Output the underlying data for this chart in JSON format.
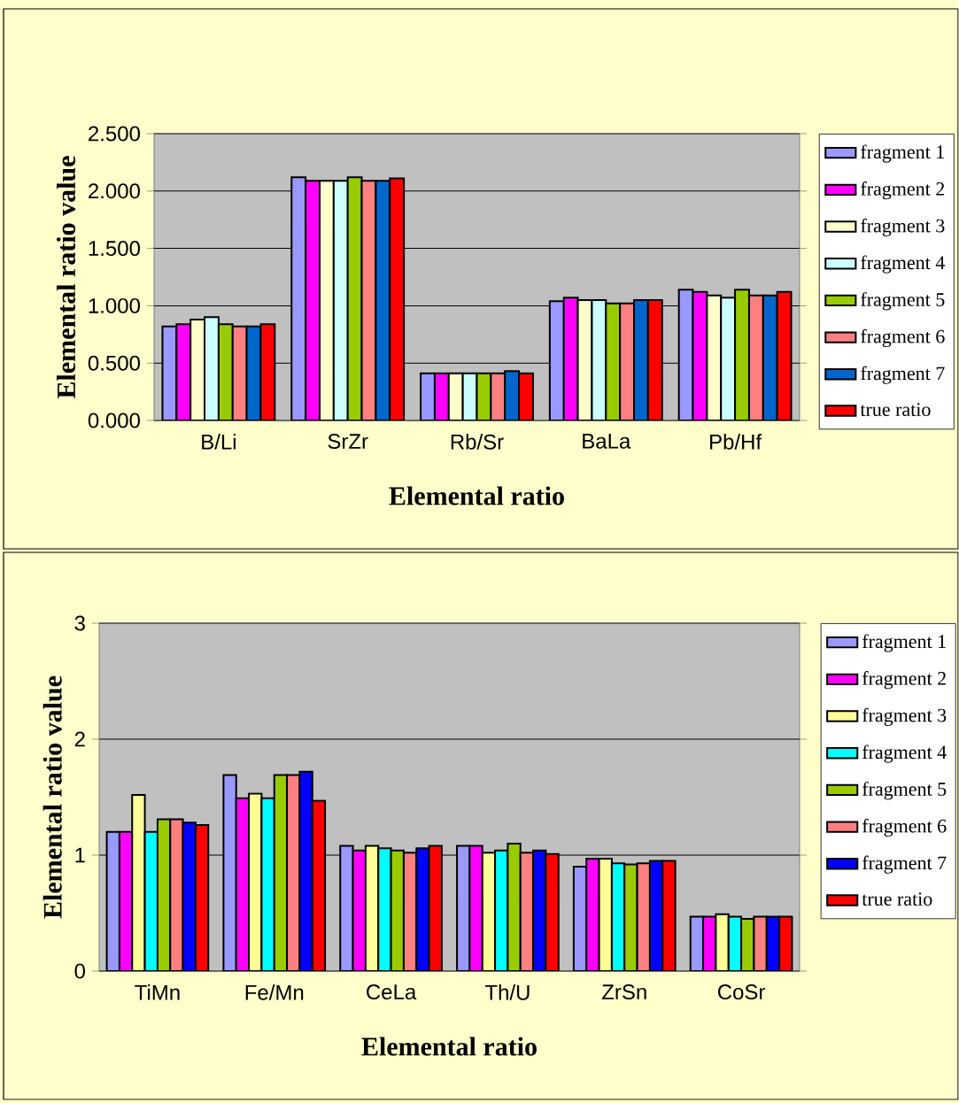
{
  "chart_data": [
    {
      "type": "bar",
      "xlabel": "Elemental ratio",
      "ylabel": "Elemental ratio value",
      "categories": [
        "B/Li",
        "SrZr",
        "Rb/Sr",
        "BaLa",
        "Pb/Hf"
      ],
      "ylim": [
        0,
        2.5
      ],
      "yticks": [
        {
          "value": 0,
          "label": "0.000"
        },
        {
          "value": 0.5,
          "label": "0.500"
        },
        {
          "value": 1,
          "label": "1.000"
        },
        {
          "value": 1.5,
          "label": "1.500"
        },
        {
          "value": 2,
          "label": "2.000"
        },
        {
          "value": 2.5,
          "label": "2.500"
        }
      ],
      "grid": "y",
      "legend": "right",
      "series": [
        {
          "name": "fragment 1",
          "color": "#9999ff",
          "values": [
            0.82,
            2.12,
            0.41,
            1.04,
            1.14
          ]
        },
        {
          "name": "fragment 2",
          "color": "#ff00ff",
          "values": [
            0.84,
            2.09,
            0.41,
            1.07,
            1.12
          ]
        },
        {
          "name": "fragment 3",
          "color": "#ffffcc",
          "values": [
            0.88,
            2.09,
            0.41,
            1.05,
            1.09
          ]
        },
        {
          "name": "fragment 4",
          "color": "#ccffff",
          "values": [
            0.9,
            2.09,
            0.41,
            1.05,
            1.07
          ]
        },
        {
          "name": "fragment 5",
          "color": "#99cc00",
          "values": [
            0.84,
            2.12,
            0.41,
            1.02,
            1.14
          ]
        },
        {
          "name": "fragment 6",
          "color": "#ff8080",
          "values": [
            0.82,
            2.09,
            0.41,
            1.02,
            1.09
          ]
        },
        {
          "name": "fragment 7",
          "color": "#0066cc",
          "values": [
            0.82,
            2.09,
            0.43,
            1.05,
            1.09
          ]
        },
        {
          "name": "true ratio",
          "color": "#ff0000",
          "values": [
            0.84,
            2.11,
            0.41,
            1.05,
            1.12
          ]
        }
      ]
    },
    {
      "type": "bar",
      "xlabel": "Elemental ratio",
      "ylabel": "Elemental ratio value",
      "categories": [
        "TiMn",
        "Fe/Mn",
        "CeLa",
        "Th/U",
        "ZrSn",
        "CoSr"
      ],
      "ylim": [
        0,
        3
      ],
      "yticks": [
        0,
        1,
        2,
        3
      ],
      "grid": "y",
      "legend": "right",
      "series": [
        {
          "name": "fragment 1",
          "color": "#9999ff",
          "values": [
            1.2,
            1.69,
            1.08,
            1.08,
            0.9,
            0.47
          ]
        },
        {
          "name": "fragment 2",
          "color": "#ff00ff",
          "values": [
            1.2,
            1.49,
            1.04,
            1.08,
            0.97,
            0.47
          ]
        },
        {
          "name": "fragment 3",
          "color": "#ffff99",
          "values": [
            1.52,
            1.53,
            1.08,
            1.02,
            0.97,
            0.49
          ]
        },
        {
          "name": "fragment 4",
          "color": "#00ffff",
          "values": [
            1.2,
            1.49,
            1.06,
            1.04,
            0.93,
            0.47
          ]
        },
        {
          "name": "fragment 5",
          "color": "#99cc00",
          "values": [
            1.31,
            1.69,
            1.04,
            1.1,
            0.92,
            0.45
          ]
        },
        {
          "name": "fragment 6",
          "color": "#ff8080",
          "values": [
            1.31,
            1.69,
            1.02,
            1.02,
            0.93,
            0.47
          ]
        },
        {
          "name": "fragment 7",
          "color": "#0000ff",
          "values": [
            1.28,
            1.72,
            1.06,
            1.04,
            0.95,
            0.47
          ]
        },
        {
          "name": "true ratio",
          "color": "#ff0000",
          "values": [
            1.26,
            1.47,
            1.08,
            1.01,
            0.95,
            0.47
          ]
        }
      ]
    }
  ]
}
